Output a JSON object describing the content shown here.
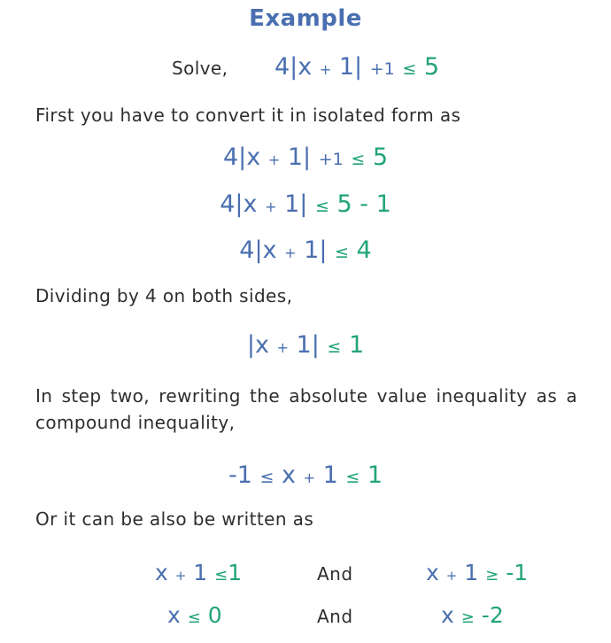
{
  "colors": {
    "blue": "#4a6fb0",
    "green": "#22a37a",
    "text": "#2e2e2e"
  },
  "title": "Example",
  "solve": {
    "label": "Solve,",
    "lhs": "4|x",
    "plus": "+",
    "one": "1|",
    "plus_one": "+1",
    "le": "≤",
    "rhs": "5"
  },
  "text1": "First you have to convert it in isolated form as",
  "step1": {
    "lhs": "4|x",
    "plus": "+",
    "one": "1|",
    "plus_one": "+1",
    "le": "≤",
    "rhs": "5"
  },
  "step2": {
    "lhs": "4|x",
    "plus": "+",
    "one": "1|",
    "le": "≤",
    "rhs": "5 - 1"
  },
  "step3": {
    "lhs": "4|x",
    "plus": "+",
    "one": "1|",
    "le": "≤",
    "rhs": "4"
  },
  "text2": "Dividing by 4 on both sides,",
  "step4": {
    "lhs": "|x",
    "plus": "+",
    "one": "1|",
    "le": "≤",
    "rhs": "1"
  },
  "text3": "In step two, rewriting the absolute value inequality as a compound inequality,",
  "compound": {
    "left": "-1",
    "le1": "≤",
    "x": "x",
    "plus": "+",
    "one": "1",
    "le2": "≤",
    "right": "1"
  },
  "text4": "Or it can be also be written as",
  "row1": {
    "left": {
      "x": "x",
      "plus": "+",
      "one": "1",
      "le": "≤",
      "rhs": "1"
    },
    "and": "And",
    "right": {
      "x": "x",
      "plus": "+",
      "one": "1",
      "ge": "≥",
      "rhs": "-1"
    }
  },
  "row2": {
    "left": {
      "x": "x",
      "le": "≤",
      "rhs": "0"
    },
    "and": "And",
    "right": {
      "x": "x",
      "ge": "≥",
      "rhs": "-2"
    }
  }
}
